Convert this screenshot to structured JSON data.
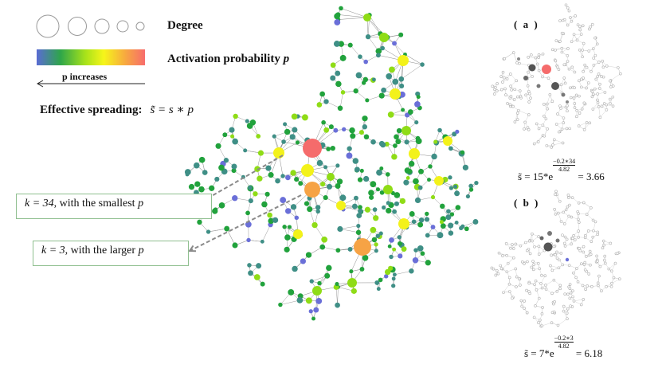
{
  "legend": {
    "degree_label": "Degree",
    "activation_label": "Activation probability",
    "activation_symbol": "p",
    "arrow_label": "p increases",
    "colorbar_colors": [
      "#5a6bd4",
      "#2ea64a",
      "#a8e21a",
      "#f6f51a",
      "#f7a840",
      "#f76c6c"
    ]
  },
  "effective": {
    "label": "Effective spreading",
    "formula": "s̃ = s ∗ p"
  },
  "callouts": {
    "k34": {
      "k": "k = 34",
      "text": ", with the smallest ",
      "p": "p"
    },
    "k3": {
      "k": "k = 3",
      "text": ", with the larger ",
      "p": "p"
    }
  },
  "panels": {
    "a": {
      "label": "( a )",
      "lhs": "s̃ = 15*e",
      "exp_num": "0.2∗34",
      "exp_den": "4.82",
      "rhs": " = 3.66"
    },
    "b": {
      "label": "( b )",
      "lhs": "s̃ = 7*e",
      "exp_num": "0.2∗3",
      "exp_den": "4.82",
      "rhs": " = 6.18"
    }
  },
  "colors": {
    "blue": "#6a6fd8",
    "teal": "#3f8f86",
    "green": "#21a23c",
    "lime": "#8fdc16",
    "yellow": "#f3f21a",
    "orange": "#f6a345",
    "red": "#f56b6b",
    "callout_border": "#8fbf8f"
  }
}
